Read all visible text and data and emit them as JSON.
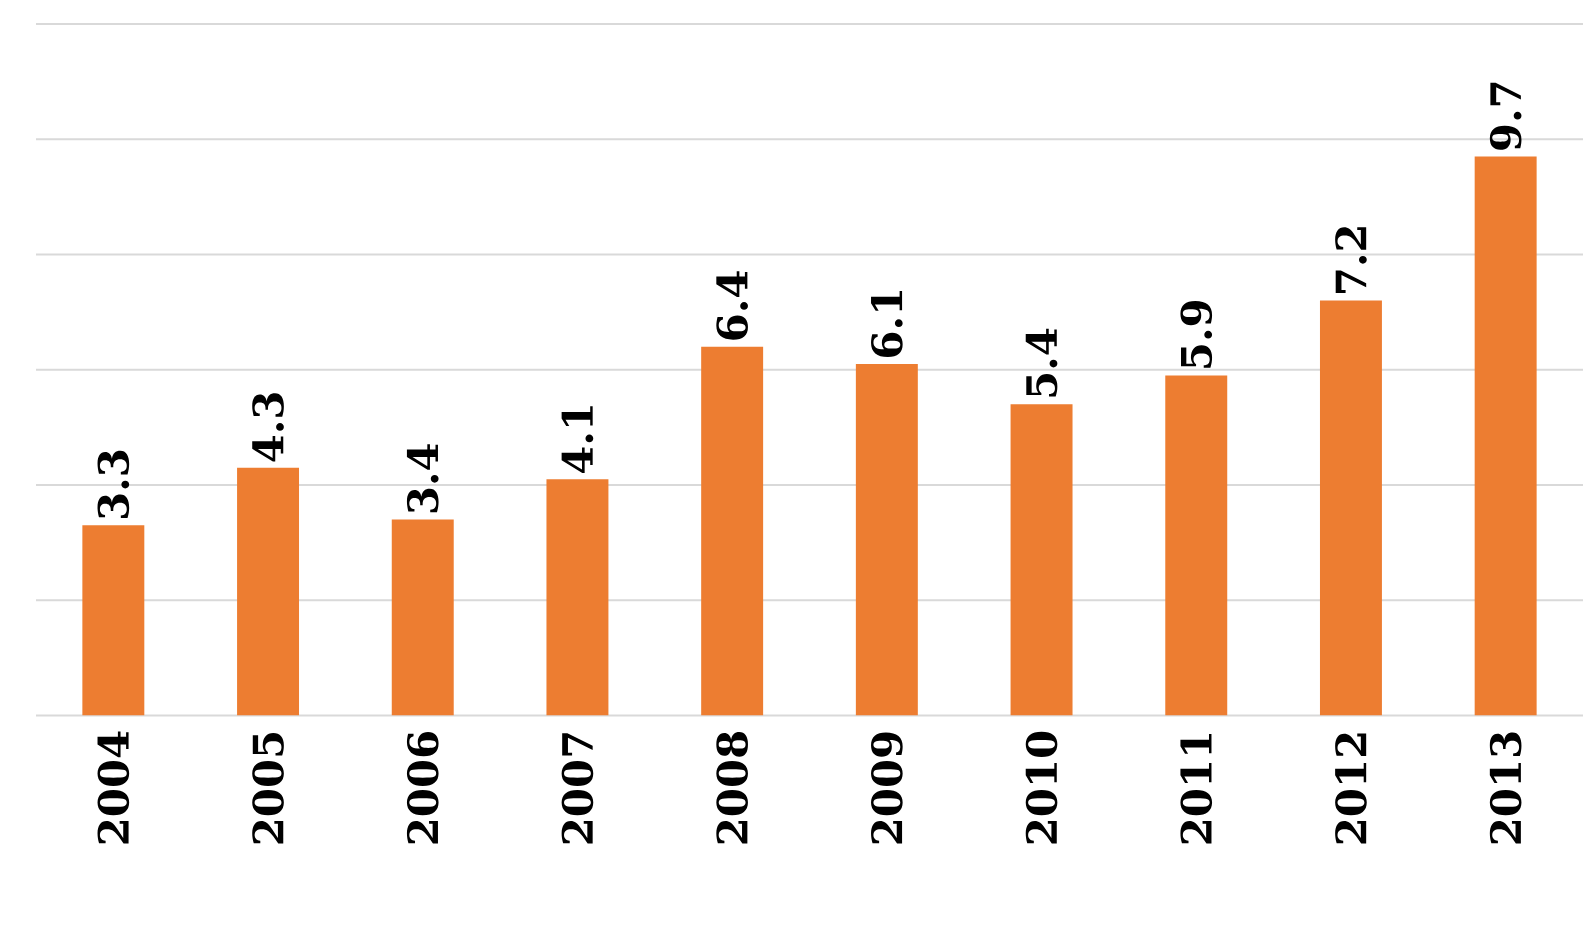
{
  "chart_data": {
    "type": "bar",
    "categories": [
      "2004",
      "2005",
      "2006",
      "2007",
      "2008",
      "2009",
      "2010",
      "2011",
      "2012",
      "2013"
    ],
    "values": [
      3.3,
      4.3,
      3.4,
      4.1,
      6.4,
      6.1,
      5.4,
      5.9,
      7.2,
      9.7
    ],
    "color": "#ed7d31",
    "ylim": [
      0,
      12
    ],
    "yticks": [
      {
        "value": 0,
        "label": null
      },
      {
        "value": 2,
        "label": null
      },
      {
        "value": 4,
        "label": null
      },
      {
        "value": 6,
        "label": null
      },
      {
        "value": 8,
        "label": null
      },
      {
        "value": 10,
        "label": null
      },
      {
        "value": 12,
        "label": null
      }
    ],
    "tick_labels": "x",
    "grid": "y",
    "data_labels": true
  }
}
